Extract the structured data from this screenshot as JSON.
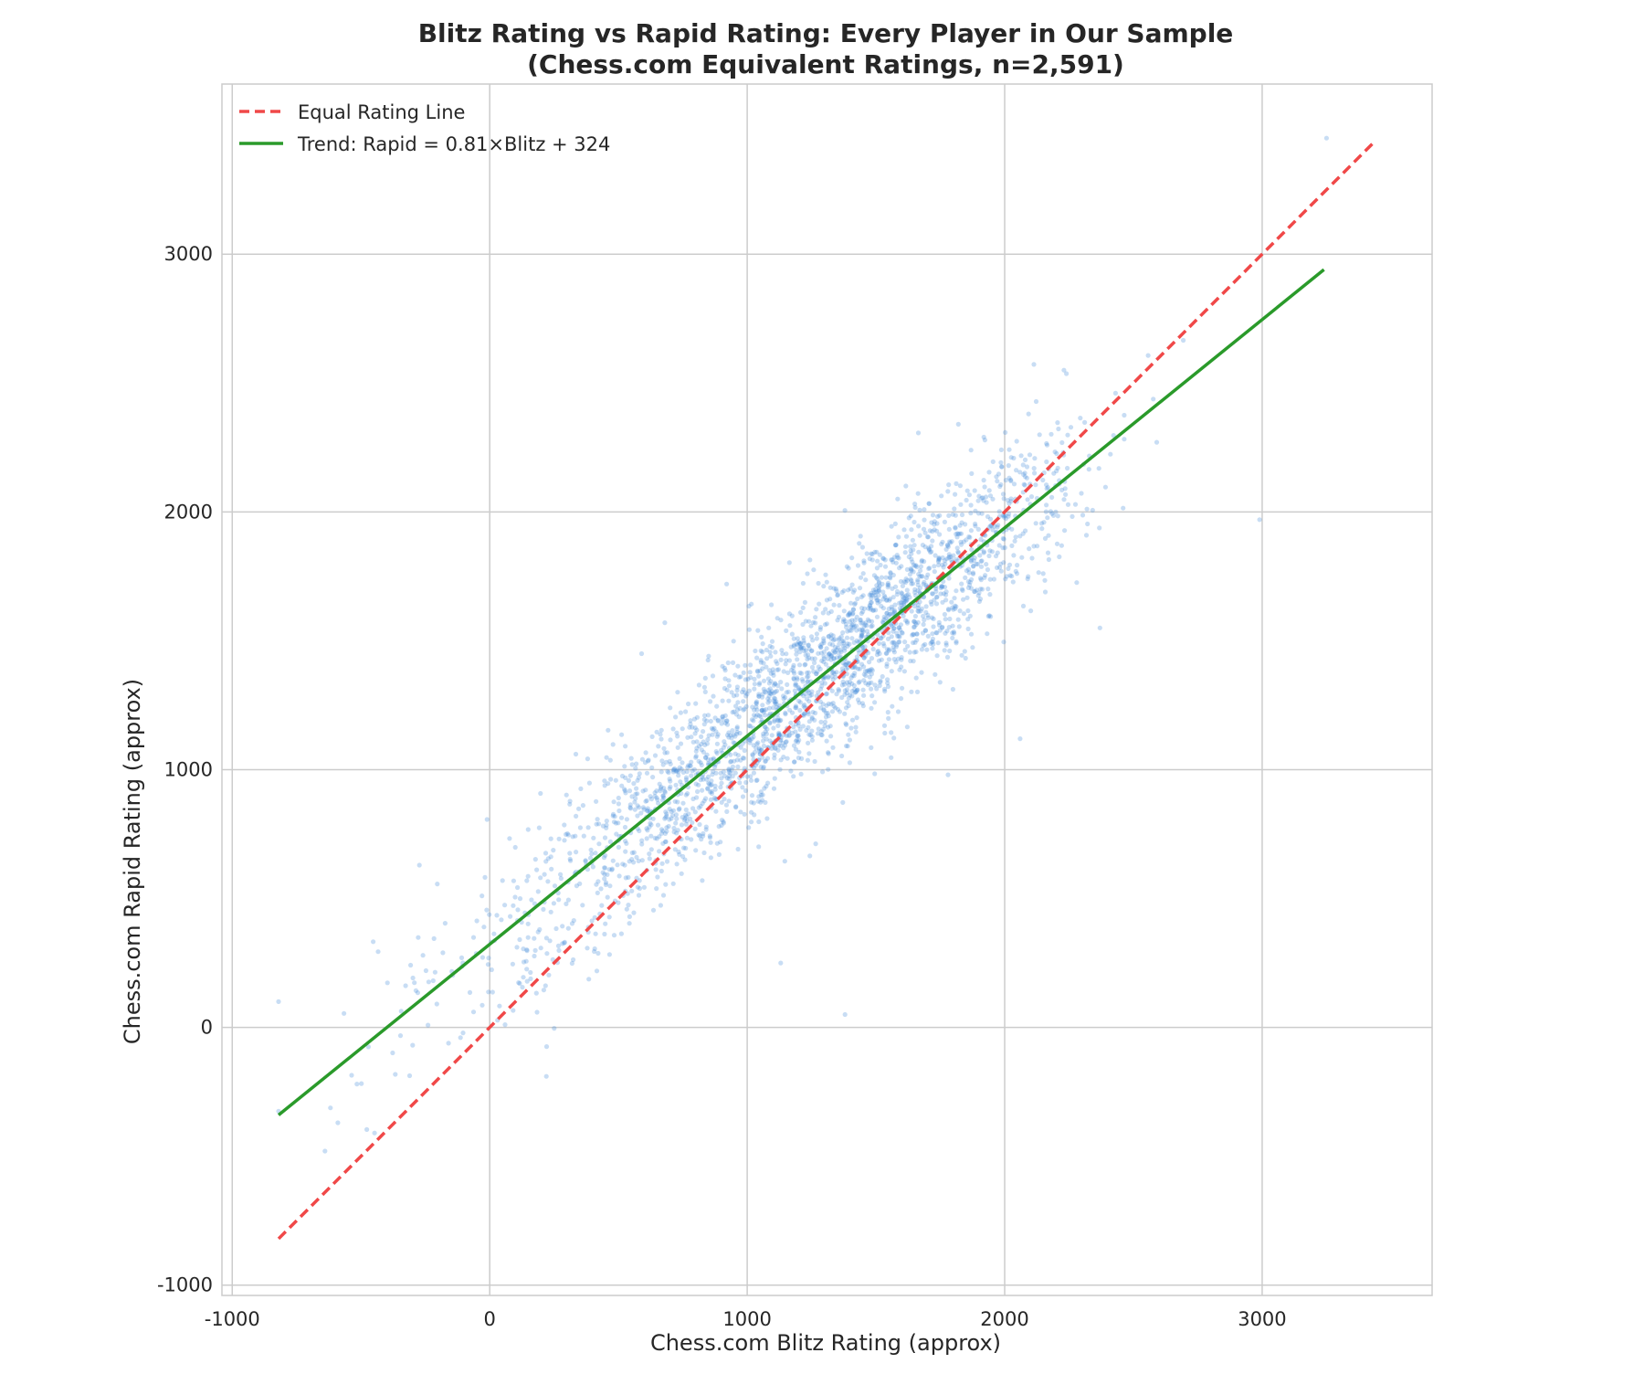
{
  "chart_data": {
    "type": "scatter",
    "title": "Blitz Rating vs Rapid Rating: Every Player in Our Sample",
    "subtitle": "(Chess.com Equivalent Ratings, n=2,591)",
    "xlabel": "Chess.com Blitz Rating (approx)",
    "ylabel": "Chess.com Rapid Rating (approx)",
    "xlim": [
      -1040,
      3660
    ],
    "ylim": [
      -1040,
      3660
    ],
    "xticks": [
      -1000,
      0,
      1000,
      2000,
      3000
    ],
    "yticks": [
      -1000,
      0,
      1000,
      2000,
      3000
    ],
    "grid": true,
    "legend_position": "top-left",
    "colors": {
      "points": "#4a90d9",
      "equal_line": "#f04848",
      "trend_line": "#2a9a2a",
      "grid": "#cccccc",
      "frame": "#cccccc"
    },
    "n_points": 2591,
    "series": [
      {
        "type": "line",
        "style": "dashed",
        "name": "Equal Rating Line",
        "x": [
          -820,
          3440
        ],
        "y": [
          -820,
          3440
        ]
      },
      {
        "type": "line",
        "style": "solid",
        "name": "Trend: Rapid = 0.81×Blitz + 324",
        "slope": 0.81,
        "intercept": 324,
        "x": [
          -820,
          3240
        ],
        "y": [
          -340,
          2940
        ]
      }
    ],
    "point_distribution": {
      "trend_slope": 0.81,
      "trend_intercept": 324,
      "blitz_clusters": [
        {
          "center": 1100,
          "spread": 420,
          "weight": 0.55
        },
        {
          "center": 1650,
          "spread": 320,
          "weight": 0.35
        },
        {
          "center": 300,
          "spread": 400,
          "weight": 0.1
        }
      ],
      "rapid_residual_sd": 170,
      "blitz_range": [
        -820,
        3250
      ]
    },
    "notable_points": [
      {
        "x": 3250,
        "y": 3450
      },
      {
        "x": 2990,
        "y": 1970
      },
      {
        "x": 2230,
        "y": 2550
      },
      {
        "x": 1820,
        "y": 2340
      },
      {
        "x": 1380,
        "y": 50
      },
      {
        "x": 1130,
        "y": 250
      },
      {
        "x": -820,
        "y": 100
      },
      {
        "x": -640,
        "y": -480
      },
      {
        "x": -590,
        "y": -370
      },
      {
        "x": 220,
        "y": -190
      },
      {
        "x": 2060,
        "y": 1120
      },
      {
        "x": 2370,
        "y": 1550
      },
      {
        "x": 1780,
        "y": 980
      },
      {
        "x": 680,
        "y": 1570
      },
      {
        "x": 590,
        "y": 1450
      },
      {
        "x": 920,
        "y": 1720
      }
    ]
  }
}
